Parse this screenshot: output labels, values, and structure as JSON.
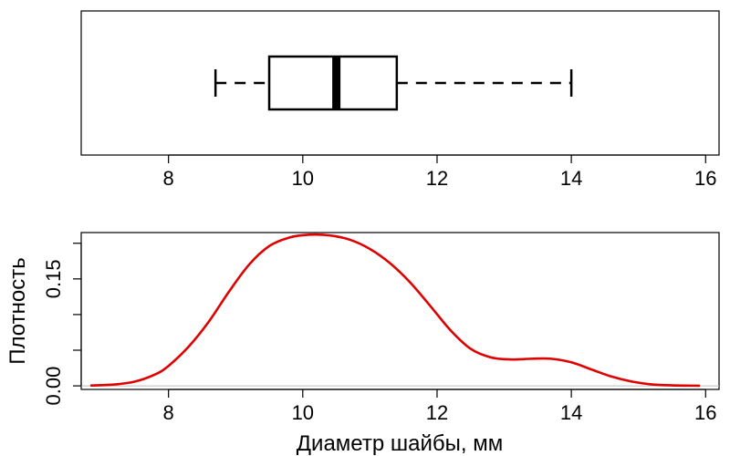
{
  "chart_data": [
    {
      "type": "boxplot",
      "orientation": "horizontal",
      "title": "",
      "xlabel": "",
      "ylabel": "",
      "xlim": [
        6.7,
        16.2
      ],
      "x_ticks": [
        8,
        10,
        12,
        14,
        16
      ],
      "x_tick_labels": [
        "8",
        "10",
        "12",
        "14",
        "16"
      ],
      "stats": {
        "whisker_low": 8.7,
        "q1": 9.5,
        "median": 10.5,
        "q3": 11.4,
        "whisker_high": 14.0
      },
      "colors": {
        "box": "#000000"
      }
    },
    {
      "type": "line",
      "title": "",
      "xlabel": "Диаметр шайбы, мм",
      "ylabel": "Плотность",
      "xlim": [
        6.7,
        16.2
      ],
      "ylim": [
        -0.005,
        0.215
      ],
      "x_ticks": [
        8,
        10,
        12,
        14,
        16
      ],
      "x_tick_labels": [
        "8",
        "10",
        "12",
        "14",
        "16"
      ],
      "y_ticks": [
        0.0,
        0.05,
        0.1,
        0.15,
        0.2
      ],
      "y_tick_labels": [
        "0.00",
        "",
        "",
        "0.15",
        ""
      ],
      "baseline": 0,
      "series": [
        {
          "color": "#e00000",
          "x": [
            6.85,
            7.2,
            7.5,
            7.8,
            8.0,
            8.3,
            8.6,
            8.9,
            9.2,
            9.5,
            9.8,
            10.1,
            10.4,
            10.7,
            11.0,
            11.3,
            11.6,
            11.9,
            12.2,
            12.5,
            12.8,
            13.1,
            13.4,
            13.7,
            14.0,
            14.3,
            14.6,
            14.9,
            15.2,
            15.5,
            15.9
          ],
          "y": [
            0.0005,
            0.002,
            0.006,
            0.016,
            0.028,
            0.055,
            0.09,
            0.132,
            0.17,
            0.196,
            0.208,
            0.212,
            0.211,
            0.205,
            0.192,
            0.172,
            0.145,
            0.112,
            0.078,
            0.052,
            0.04,
            0.037,
            0.038,
            0.038,
            0.033,
            0.023,
            0.013,
            0.006,
            0.002,
            0.0007,
            0.0002
          ]
        }
      ]
    }
  ]
}
